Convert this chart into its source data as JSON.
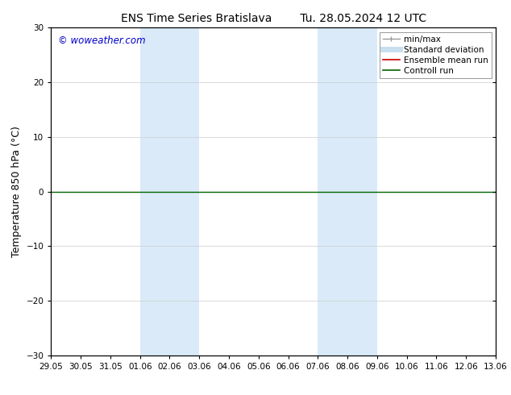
{
  "title_left": "ENS Time Series Bratislava",
  "title_right": "Tu. 28.05.2024 12 UTC",
  "ylabel": "Temperature 850 hPa (°C)",
  "ylim": [
    -30,
    30
  ],
  "yticks": [
    -30,
    -20,
    -10,
    0,
    10,
    20,
    30
  ],
  "xtick_labels": [
    "29.05",
    "30.05",
    "31.05",
    "01.06",
    "02.06",
    "03.06",
    "04.06",
    "05.06",
    "06.06",
    "07.06",
    "08.06",
    "09.06",
    "10.06",
    "11.06",
    "12.06",
    "13.06"
  ],
  "bg_color": "#ffffff",
  "plot_bg_color": "#ffffff",
  "shaded_bands": [
    {
      "xstart": 3,
      "xend": 5
    },
    {
      "xstart": 9,
      "xend": 11
    }
  ],
  "shaded_color": "#daeaf8",
  "zero_line_color": "#006400",
  "zero_line_y": 0,
  "watermark_text": "© woweather.com",
  "watermark_color": "#0000cc",
  "legend_items": [
    {
      "label": "min/max",
      "color": "#999999",
      "lw": 1.0
    },
    {
      "label": "Standard deviation",
      "color": "#c8dff0",
      "lw": 5
    },
    {
      "label": "Ensemble mean run",
      "color": "#cc0000",
      "lw": 1.2
    },
    {
      "label": "Controll run",
      "color": "#006400",
      "lw": 1.2
    }
  ],
  "title_fontsize": 10,
  "ylabel_fontsize": 9,
  "tick_fontsize": 7.5,
  "legend_fontsize": 7.5
}
